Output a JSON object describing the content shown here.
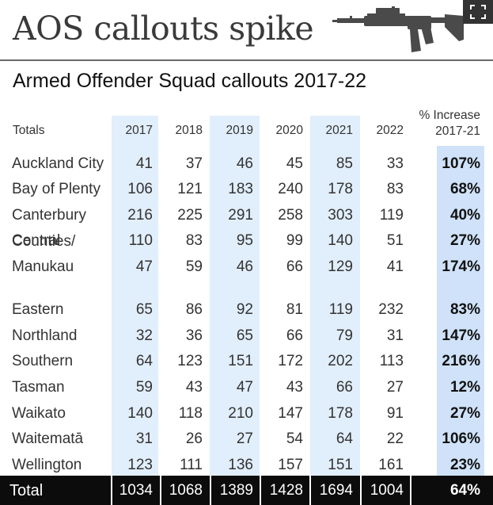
{
  "headline": "AOS callouts spike",
  "icons": {
    "rifle": "assault-rifle-icon",
    "expand": "expand-icon"
  },
  "chart_data": {
    "type": "table",
    "title": "Armed Offender Squad callouts 2017-22",
    "row_header": "Totals",
    "columns": [
      "2017",
      "2018",
      "2019",
      "2020",
      "2021",
      "2022"
    ],
    "pct_header": [
      "% Increase",
      "2017-21"
    ],
    "rows": [
      {
        "region": "Auckland City",
        "values": [
          "41",
          "37",
          "46",
          "45",
          "85",
          "33"
        ],
        "pct": "107%"
      },
      {
        "region": "Bay of Plenty",
        "values": [
          "106",
          "121",
          "183",
          "240",
          "178",
          "83"
        ],
        "pct": "68%"
      },
      {
        "region": "Canterbury",
        "values": [
          "216",
          "225",
          "291",
          "258",
          "303",
          "119"
        ],
        "pct": "40%"
      },
      {
        "region": "Central",
        "values": [
          "110",
          "83",
          "95",
          "99",
          "140",
          "51"
        ],
        "pct": "27%"
      },
      {
        "region": "Counties/ Manukau",
        "values": [
          "47",
          "59",
          "46",
          "66",
          "129",
          "41"
        ],
        "pct": "174%"
      },
      {
        "region": "Eastern",
        "values": [
          "65",
          "86",
          "92",
          "81",
          "119",
          "232"
        ],
        "pct": "83%"
      },
      {
        "region": "Northland",
        "values": [
          "32",
          "36",
          "65",
          "66",
          "79",
          "31"
        ],
        "pct": "147%"
      },
      {
        "region": "Southern",
        "values": [
          "64",
          "123",
          "151",
          "172",
          "202",
          "113"
        ],
        "pct": "216%"
      },
      {
        "region": "Tasman",
        "values": [
          "59",
          "43",
          "47",
          "43",
          "66",
          "27"
        ],
        "pct": "12%"
      },
      {
        "region": "Waikato",
        "values": [
          "140",
          "118",
          "210",
          "147",
          "178",
          "91"
        ],
        "pct": "27%"
      },
      {
        "region": "Waitematā",
        "values": [
          "31",
          "26",
          "27",
          "54",
          "64",
          "22"
        ],
        "pct": "106%"
      },
      {
        "region": "Wellington",
        "values": [
          "123",
          "111",
          "136",
          "157",
          "151",
          "161"
        ],
        "pct": "23%"
      }
    ],
    "total": {
      "label": "Total",
      "values": [
        "1034",
        "1068",
        "1389",
        "1428",
        "1694",
        "1004"
      ],
      "pct": "64%"
    },
    "colors": {
      "column_shade": "#e1eefb",
      "pct_shade": "#cfe2f9",
      "total_bar": "#0c0c0c"
    }
  }
}
